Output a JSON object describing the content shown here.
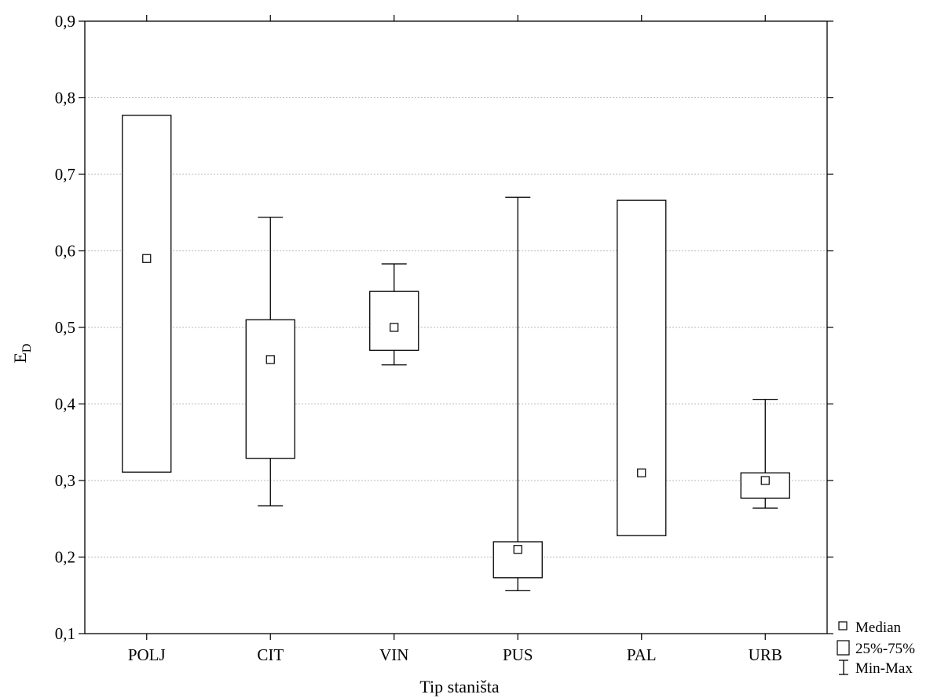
{
  "chart_data": {
    "type": "box",
    "xlabel": "Tip staništa",
    "ylabel": "E",
    "ylabel_subscript": "D",
    "ylim": [
      0.1,
      0.9
    ],
    "yticks": [
      "0,1",
      "0,2",
      "0,3",
      "0,4",
      "0,5",
      "0,6",
      "0,7",
      "0,8",
      "0,9"
    ],
    "grid": "horizontal-dotted",
    "legend_position": "bottom-right",
    "categories": [
      "POLJ",
      "CIT",
      "VIN",
      "PUS",
      "PAL",
      "URB"
    ],
    "series": [
      {
        "name": "Median",
        "values": [
          0.59,
          0.458,
          0.5,
          0.21,
          0.31,
          0.3
        ]
      },
      {
        "name": "25%",
        "values": [
          0.311,
          0.329,
          0.47,
          0.173,
          0.228,
          0.277
        ]
      },
      {
        "name": "75%",
        "values": [
          0.777,
          0.51,
          0.547,
          0.22,
          0.666,
          0.31
        ]
      },
      {
        "name": "Min",
        "values": [
          0.311,
          0.267,
          0.451,
          0.156,
          0.228,
          0.264
        ]
      },
      {
        "name": "Max",
        "values": [
          0.777,
          0.644,
          0.583,
          0.67,
          0.666,
          0.406
        ]
      }
    ],
    "legend": [
      "Median",
      "25%-75%",
      "Min-Max"
    ]
  }
}
